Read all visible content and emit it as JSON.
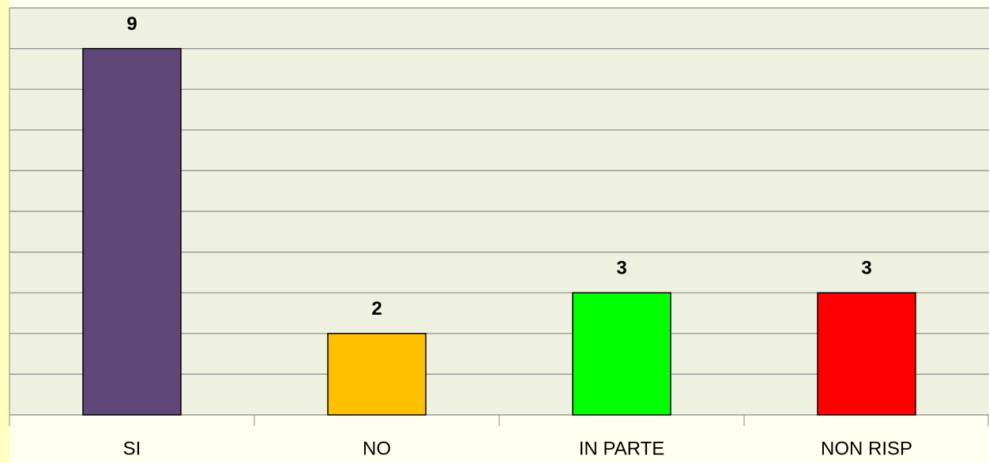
{
  "chart_data": {
    "type": "bar",
    "categories": [
      "SI",
      "NO",
      "IN PARTE",
      "NON RISP"
    ],
    "values": [
      9,
      2,
      3,
      3
    ],
    "colors": [
      "#5f4878",
      "#ffc000",
      "#00ff00",
      "#ff0000"
    ],
    "ylim": [
      0,
      10
    ],
    "yticks": [
      0,
      1,
      2,
      3,
      4,
      5,
      6,
      7,
      8,
      9,
      10
    ],
    "grid": true
  }
}
